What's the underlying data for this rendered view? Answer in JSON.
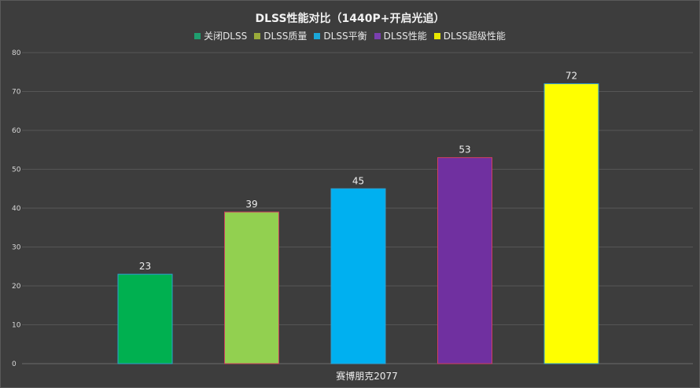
{
  "chart_data": {
    "type": "bar",
    "title": "DLSS性能对比（1440P+开启光追）",
    "categories": [
      "赛博朋克2077"
    ],
    "series": [
      {
        "name": "关闭DLSS",
        "values": [
          23
        ],
        "color": "#00b050"
      },
      {
        "name": "DLSS质量",
        "values": [
          39
        ],
        "color": "#92d050"
      },
      {
        "name": "DLSS平衡",
        "values": [
          45
        ],
        "color": "#00b0f0"
      },
      {
        "name": "DLSS性能",
        "values": [
          53
        ],
        "color": "#7030a0"
      },
      {
        "name": "DLSS超级性能",
        "values": [
          72
        ],
        "color": "#ffff00"
      }
    ],
    "legend_colors": [
      "#1f9f6f",
      "#9aab3a",
      "#1aa7d8",
      "#7a3fb0",
      "#e8e800"
    ],
    "ylim": [
      0,
      80
    ],
    "yticks": [
      0,
      10,
      20,
      30,
      40,
      50,
      60,
      70,
      80
    ],
    "grid": true,
    "legend_position": "top",
    "data_labels": true
  }
}
